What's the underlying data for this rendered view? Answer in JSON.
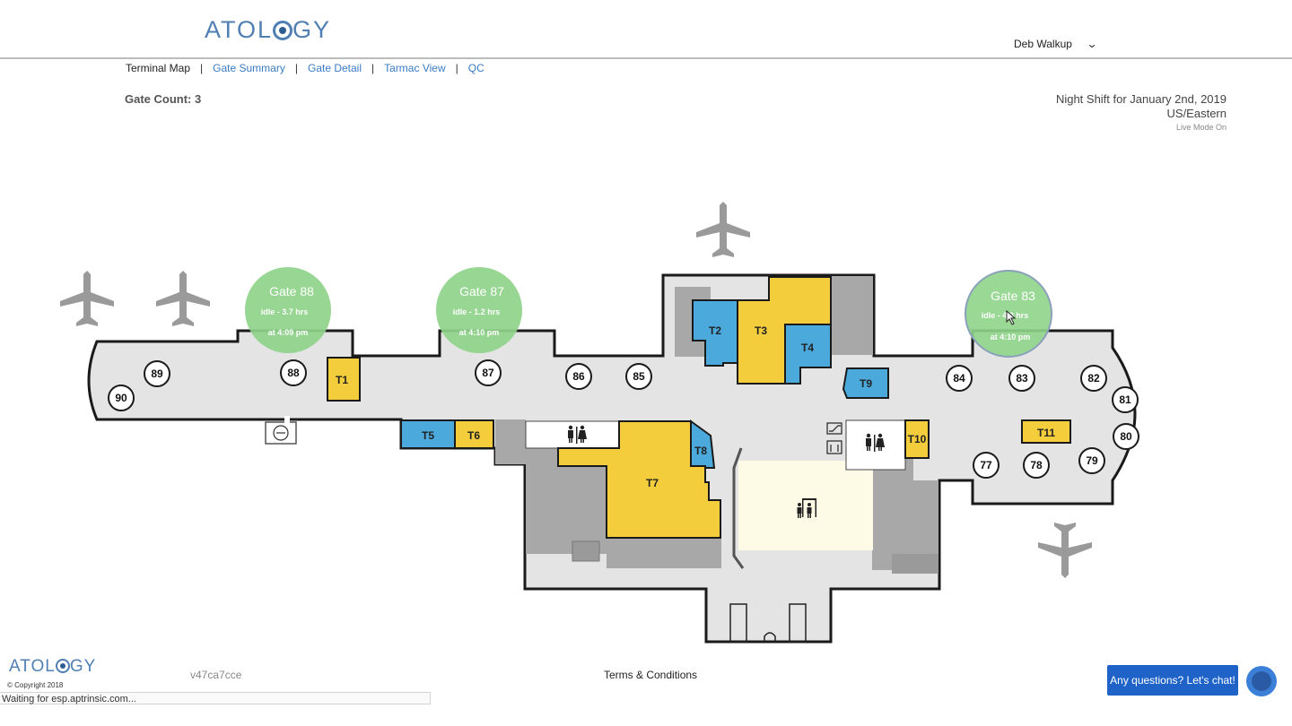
{
  "header": {
    "logo_text_left": "ATOL",
    "logo_text_right": "GY",
    "user_name": "Deb Walkup",
    "user_chevron": "⌄"
  },
  "nav": {
    "items": [
      {
        "label": "Terminal Map",
        "active": true
      },
      {
        "label": "Gate Summary",
        "active": false
      },
      {
        "label": "Gate Detail",
        "active": false
      },
      {
        "label": "Tarmac View",
        "active": false
      },
      {
        "label": "QC",
        "active": false
      }
    ],
    "separator": "|"
  },
  "summary": {
    "gate_count": "Gate Count: 3",
    "shift": "Night Shift for January 2nd, 2019",
    "timezone": "US/Eastern",
    "live_mode": "Live Mode On"
  },
  "map": {
    "gate_bubbles": [
      {
        "title": "Gate 88",
        "idle": "idle - 3.7 hrs",
        "time": "at 4:09 pm"
      },
      {
        "title": "Gate 87",
        "idle": "idle - 1.2 hrs",
        "time": "at 4:10 pm"
      },
      {
        "title": "Gate 83",
        "idle": "idle - 4.9 hrs",
        "time": "at 4:10 pm"
      }
    ],
    "gates": [
      "90",
      "89",
      "88",
      "87",
      "86",
      "85",
      "84",
      "83",
      "82",
      "81",
      "80",
      "79",
      "78",
      "77"
    ],
    "tenants": [
      "T1",
      "T2",
      "T3",
      "T4",
      "T5",
      "T6",
      "T7",
      "T8",
      "T9",
      "T10",
      "T11"
    ],
    "colors": {
      "floor": "#e4e4e4",
      "wall": "#1a1a1a",
      "yellow": "#f3cd3c",
      "blue": "#4ba9dc",
      "gray": "#a8a8a8",
      "bubble": "#8fd48a",
      "security": "#fdfae6",
      "plane": "#999999"
    },
    "icons": [
      "airplane-icon",
      "restroom-icon",
      "security-checkpoint-icon",
      "escalator-icon",
      "elevator-icon",
      "cursor-icon"
    ]
  },
  "footer": {
    "logo_text_left": "ATOL",
    "logo_text_right": "GY",
    "copyright": "© Copyright 2018",
    "version": "v47ca7cce",
    "terms": "Terms & Conditions",
    "status": "Waiting for esp.aptrinsic.com...",
    "chat": "Any questions? Let's chat!"
  }
}
